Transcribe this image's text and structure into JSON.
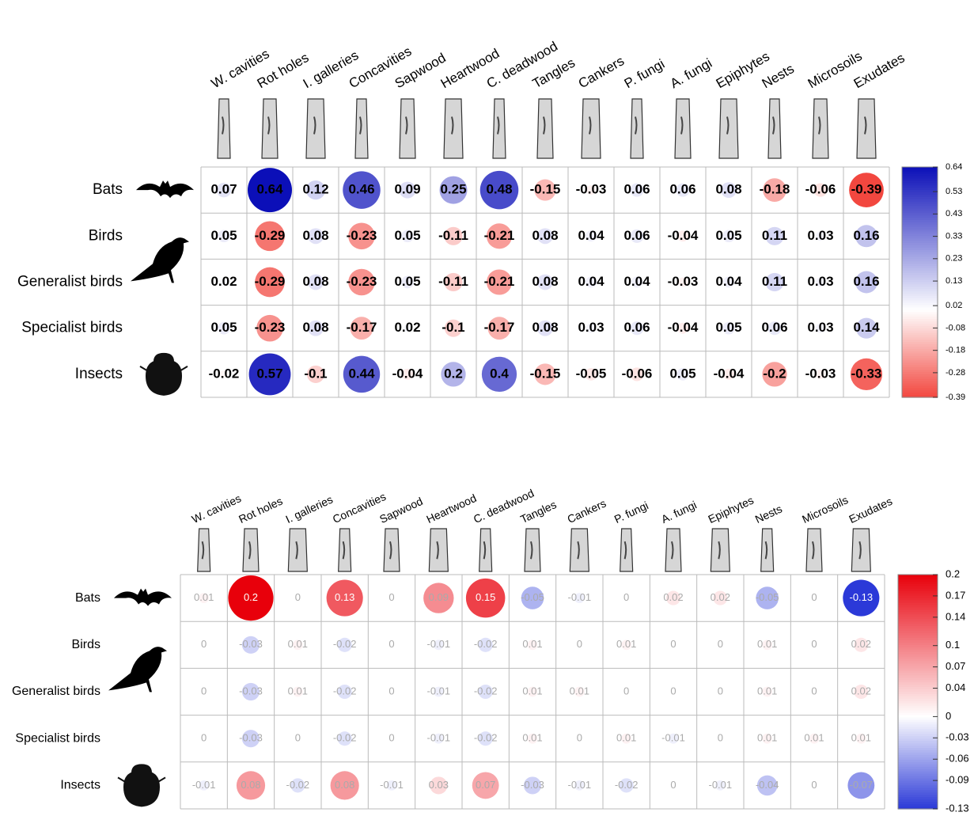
{
  "chart_data": [
    {
      "type": "corrplot",
      "columns": [
        "W. cavities",
        "Rot holes",
        "I. galleries",
        "Concavities",
        "Sapwood",
        "Heartwood",
        "C. deadwood",
        "Tangles",
        "Cankers",
        "P. fungi",
        "A. fungi",
        "Epiphytes",
        "Nests",
        "Microsoils",
        "Exudates"
      ],
      "rows": [
        "Bats",
        "Birds",
        "Generalist birds",
        "Specialist birds",
        "Insects"
      ],
      "values": [
        [
          0.07,
          0.64,
          0.12,
          0.46,
          0.09,
          0.25,
          0.48,
          -0.15,
          -0.03,
          0.06,
          0.06,
          0.08,
          -0.18,
          -0.06,
          -0.39
        ],
        [
          0.05,
          -0.29,
          0.08,
          -0.23,
          0.05,
          -0.11,
          -0.21,
          0.08,
          0.04,
          0.06,
          -0.04,
          0.05,
          0.11,
          0.03,
          0.16
        ],
        [
          0.02,
          -0.29,
          0.08,
          -0.23,
          0.05,
          -0.11,
          -0.21,
          0.08,
          0.04,
          0.04,
          -0.03,
          0.04,
          0.11,
          0.03,
          0.16
        ],
        [
          0.05,
          -0.23,
          0.08,
          -0.17,
          0.02,
          -0.1,
          -0.17,
          0.08,
          0.03,
          0.06,
          -0.04,
          0.05,
          0.06,
          0.03,
          0.14
        ],
        [
          -0.02,
          0.57,
          -0.1,
          0.44,
          -0.04,
          0.2,
          0.4,
          -0.15,
          -0.05,
          -0.06,
          0.05,
          -0.04,
          -0.2,
          -0.03,
          -0.33
        ]
      ],
      "clim": [
        -0.39,
        0.64
      ],
      "cticks": [
        0.64,
        0.53,
        0.43,
        0.33,
        0.23,
        0.13,
        0.02,
        -0.08,
        -0.18,
        -0.28,
        -0.39
      ],
      "positive_color": "#0b0fb8",
      "negative_color": "#f2473f"
    },
    {
      "type": "corrplot",
      "columns": [
        "W. cavities",
        "Rot holes",
        "I. galleries",
        "Concavities",
        "Sapwood",
        "Heartwood",
        "C. deadwood",
        "Tangles",
        "Cankers",
        "P. fungi",
        "A. fungi",
        "Epiphytes",
        "Nests",
        "Microsoils",
        "Exudates"
      ],
      "rows": [
        "Bats",
        "Birds",
        "Generalist birds",
        "Specialist birds",
        "Insects"
      ],
      "values": [
        [
          0.01,
          0.2,
          0,
          0.13,
          0,
          0.09,
          0.15,
          -0.05,
          -0.01,
          0,
          0.02,
          0.02,
          -0.05,
          0,
          -0.13
        ],
        [
          0,
          -0.03,
          0.01,
          -0.02,
          0,
          -0.01,
          -0.02,
          0.01,
          0,
          0.01,
          0,
          0,
          0.01,
          0,
          0.02
        ],
        [
          0,
          -0.03,
          0.01,
          -0.02,
          0,
          -0.01,
          -0.02,
          0.01,
          0.01,
          0,
          0,
          0,
          0.01,
          0,
          0.02
        ],
        [
          0,
          -0.03,
          0,
          -0.02,
          0,
          -0.01,
          -0.02,
          0.01,
          0,
          0.01,
          -0.01,
          0,
          0.01,
          0.01,
          0.01
        ],
        [
          -0.01,
          0.08,
          -0.02,
          0.08,
          -0.01,
          0.03,
          0.07,
          -0.03,
          -0.01,
          -0.02,
          0,
          -0.01,
          -0.04,
          0,
          -0.07
        ]
      ],
      "clim": [
        -0.13,
        0.2
      ],
      "cticks": [
        0.2,
        0.17,
        0.14,
        0.1,
        0.07,
        0.04,
        0,
        -0.03,
        -0.06,
        -0.09,
        -0.13
      ],
      "positive_color": "#e8000b",
      "negative_color": "#2b39d8"
    }
  ]
}
